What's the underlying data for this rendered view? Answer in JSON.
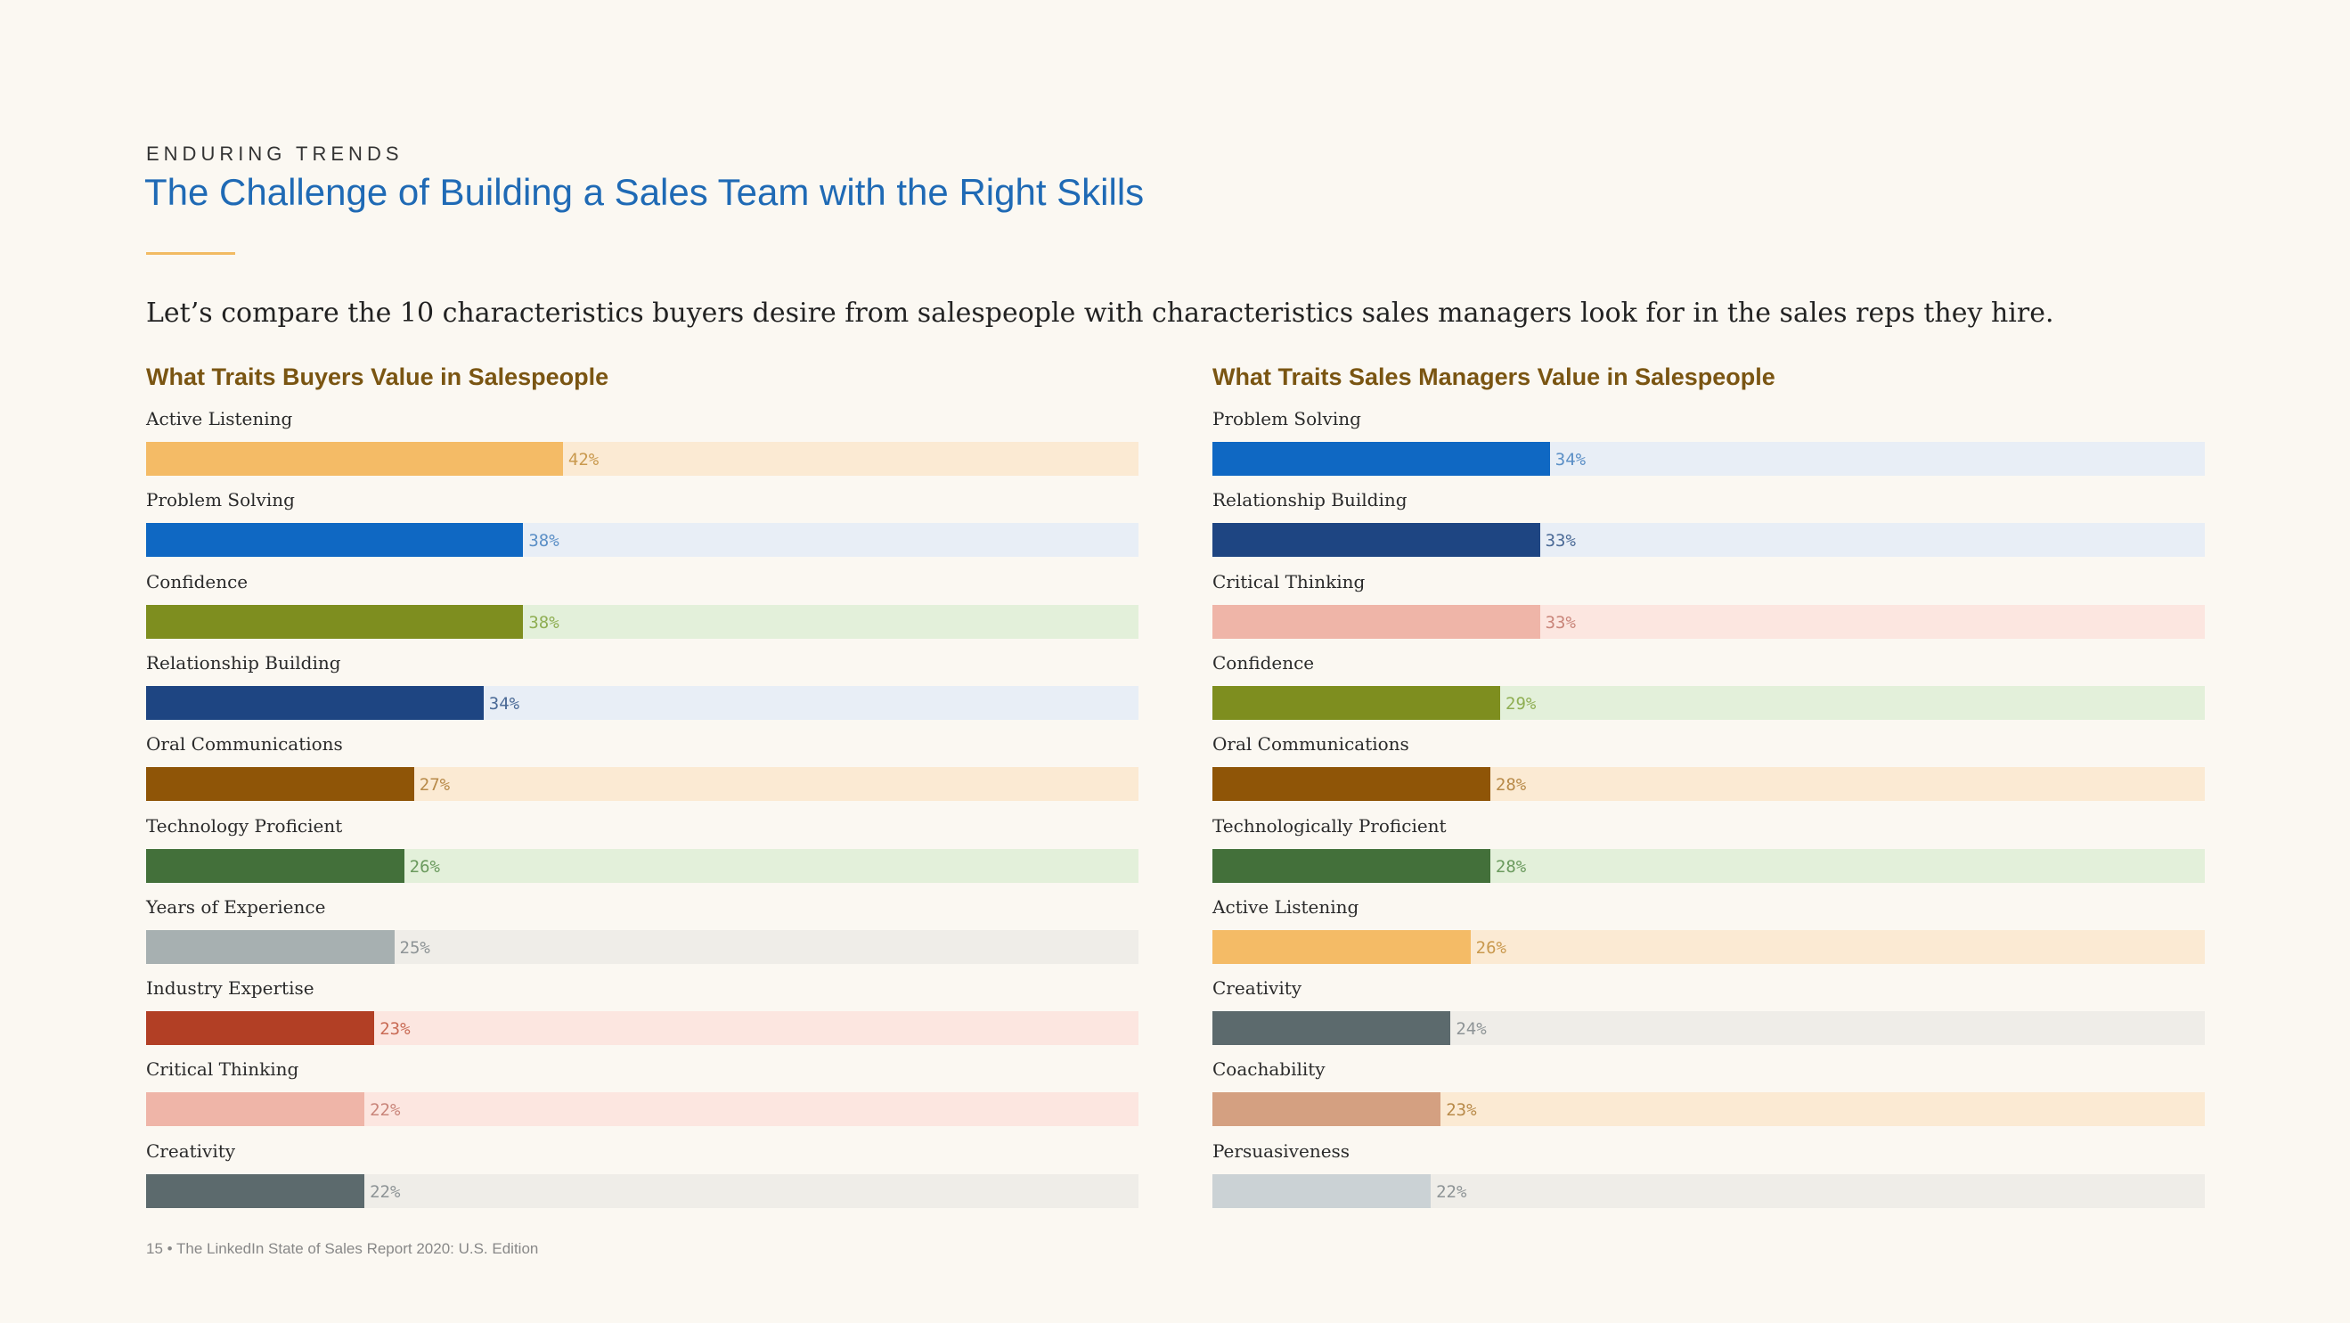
{
  "header": {
    "eyebrow": "ENDURING TRENDS",
    "title": "The Challenge of Building a Sales Team with the Right Skills",
    "intro": "Let’s compare the 10 characteristics buyers desire from salespeople with characteristics sales managers look for in the sales reps they hire."
  },
  "footer": {
    "text": "15 • The LinkedIn State of Sales Report 2020: U.S. Edition"
  },
  "chart_data": [
    {
      "type": "bar",
      "orientation": "horizontal",
      "title": "What Traits Buyers Value in Salespeople",
      "xlim": [
        0,
        100
      ],
      "categories": [
        "Active Listening",
        "Problem Solving",
        "Confidence",
        "Relationship Building",
        "Oral Communications",
        "Technology Proficient",
        "Years of Experience",
        "Industry Expertise",
        "Critical Thinking",
        "Creativity"
      ],
      "values": [
        42,
        38,
        38,
        34,
        27,
        26,
        25,
        23,
        22,
        22
      ],
      "labels": [
        "42%",
        "38%",
        "38%",
        "34%",
        "27%",
        "26%",
        "25%",
        "23%",
        "22%",
        "22%"
      ],
      "colors": [
        "#f4bb66",
        "#0f68c3",
        "#7e8e1f",
        "#1e4582",
        "#8f5507",
        "#43703a",
        "#a7b0b1",
        "#b23f25",
        "#efb5a8",
        "#5c6a6d"
      ],
      "track_colors": [
        "#fbead3",
        "#e8eef6",
        "#e3f0da",
        "#e8eef6",
        "#fbead3",
        "#e3f0da",
        "#efede8",
        "#fce6e0",
        "#fce6e0",
        "#efede8"
      ],
      "label_colors": [
        "#c9994e",
        "#5b8fc6",
        "#8fae53",
        "#4b6a96",
        "#b88a49",
        "#6b9a5e",
        "#8e9496",
        "#c96b55",
        "#c9857a",
        "#8e9496"
      ]
    },
    {
      "type": "bar",
      "orientation": "horizontal",
      "title": "What Traits Sales Managers Value in Salespeople",
      "xlim": [
        0,
        100
      ],
      "categories": [
        "Problem Solving",
        "Relationship Building",
        "Critical Thinking",
        "Confidence",
        "Oral Communications",
        "Technologically Proficient",
        "Active Listening",
        "Creativity",
        "Coachability",
        "Persuasiveness"
      ],
      "values": [
        34,
        33,
        33,
        29,
        28,
        28,
        26,
        24,
        23,
        22
      ],
      "labels": [
        "34%",
        "33%",
        "33%",
        "29%",
        "28%",
        "28%",
        "26%",
        "24%",
        "23%",
        "22%"
      ],
      "colors": [
        "#0f68c3",
        "#1e4582",
        "#efb5a8",
        "#7e8e1f",
        "#8f5507",
        "#43703a",
        "#f4bb66",
        "#5c6a6d",
        "#d4a081",
        "#cbd2d5"
      ],
      "track_colors": [
        "#e8eef6",
        "#e8eef6",
        "#fce6e0",
        "#e3f0da",
        "#fbead3",
        "#e3f0da",
        "#fbead3",
        "#efede8",
        "#fbead3",
        "#efede8"
      ],
      "label_colors": [
        "#5b8fc6",
        "#4b6a96",
        "#c9857a",
        "#8fae53",
        "#b88a49",
        "#6b9a5e",
        "#c9994e",
        "#8e9496",
        "#b88a49",
        "#8e9496"
      ]
    }
  ]
}
